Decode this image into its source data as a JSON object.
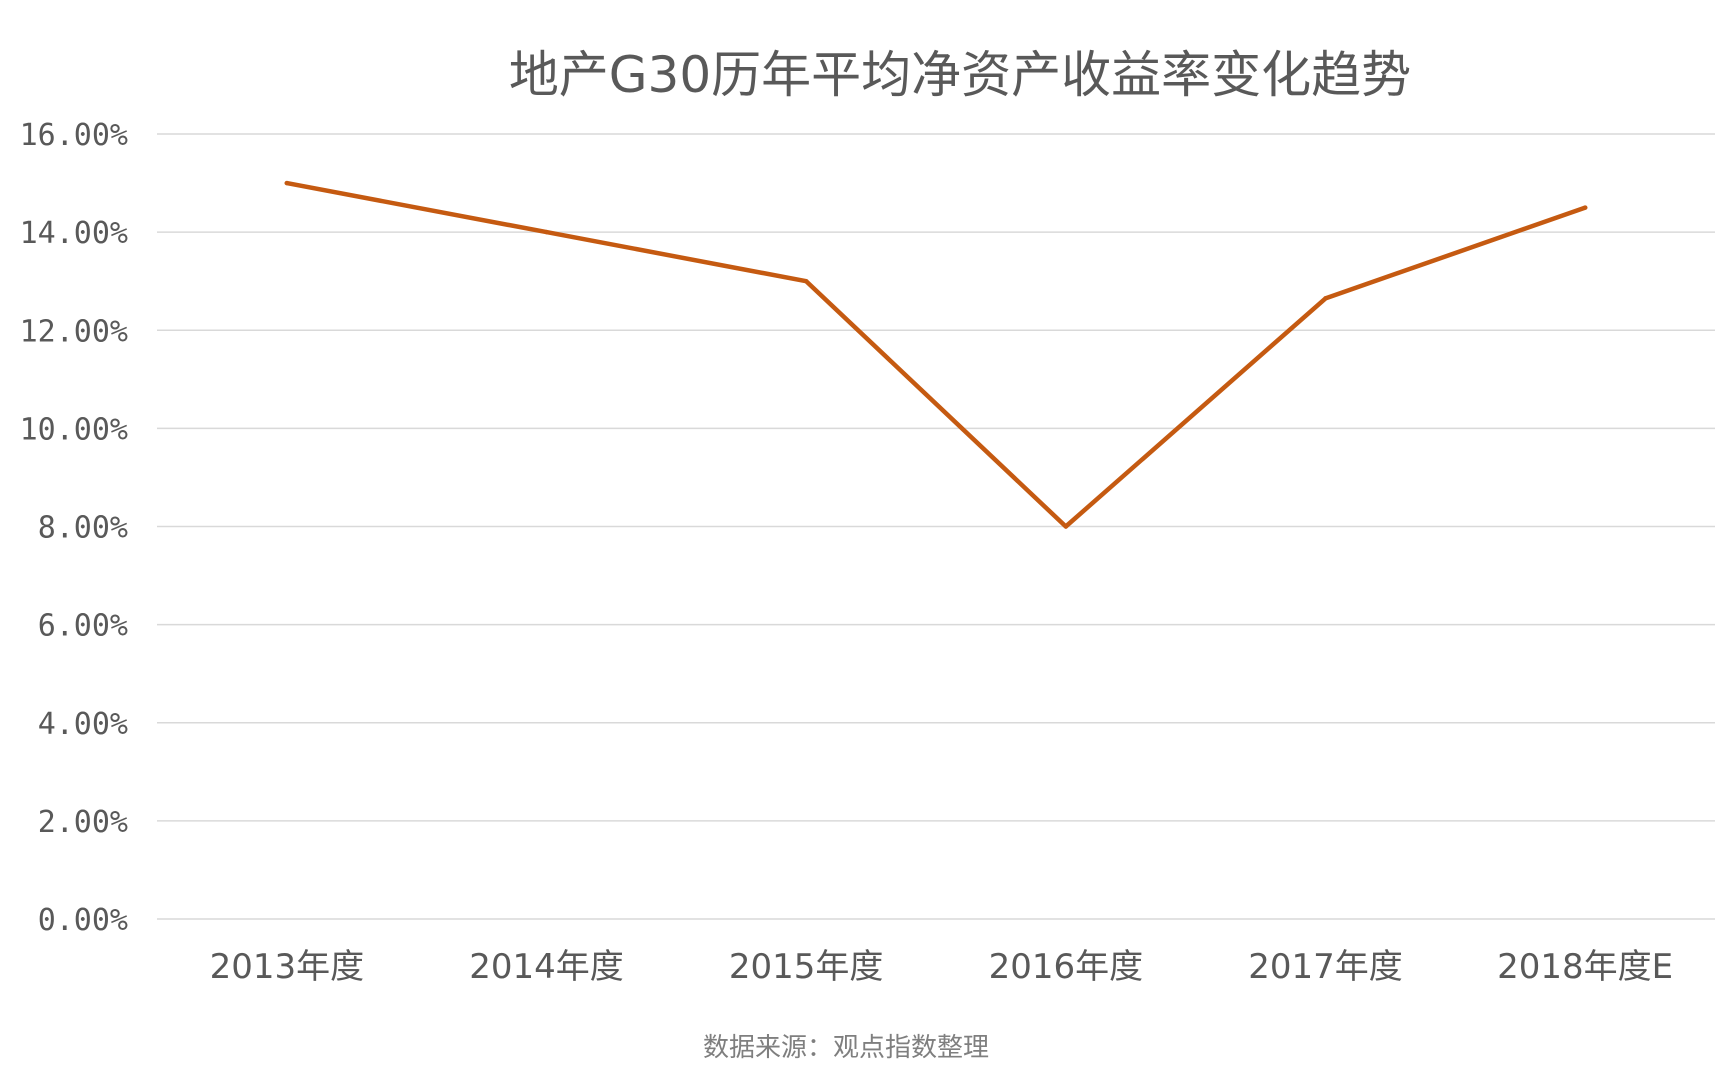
{
  "chart_data": {
    "type": "line",
    "title": "地产G30历年平均净资产收益率变化趋势",
    "categories": [
      "2013年度",
      "2014年度",
      "2015年度",
      "2016年度",
      "2017年度",
      "2018年度E"
    ],
    "series": [
      {
        "values": [
          15.0,
          14.0,
          13.0,
          8.0,
          12.65,
          14.5
        ]
      }
    ],
    "y_ticks": [
      "0.00%",
      "2.00%",
      "4.00%",
      "6.00%",
      "8.00%",
      "10.00%",
      "12.00%",
      "14.00%",
      "16.00%"
    ],
    "ylim": [
      0,
      16
    ],
    "y_unit": "%",
    "grid": true,
    "legend": "none",
    "colors": {
      "line": "#C55A11",
      "grid": "#D9D9D9",
      "text": "#595959"
    }
  },
  "footer": {
    "source": "数据来源：观点指数整理"
  }
}
